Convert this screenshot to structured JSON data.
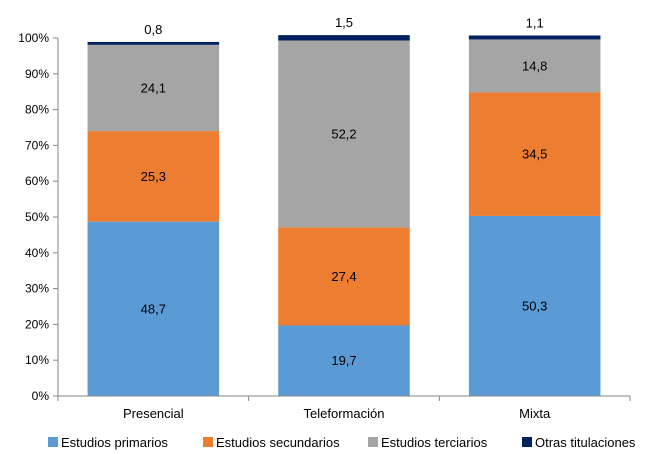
{
  "chart_data": {
    "type": "bar",
    "stacked": true,
    "categories": [
      "Presencial",
      "Teleformación",
      "Mixta"
    ],
    "series": [
      {
        "name": "Estudios primarios",
        "color": "#5b9bd5",
        "values": [
          48.7,
          19.7,
          50.3
        ]
      },
      {
        "name": "Estudios secundarios",
        "color": "#ed7d31",
        "values": [
          25.3,
          27.4,
          34.5
        ]
      },
      {
        "name": "Estudios terciarios",
        "color": "#a5a5a5",
        "values": [
          24.1,
          52.2,
          14.8
        ]
      },
      {
        "name": "Otras titulaciones",
        "color": "#002060",
        "values": [
          0.8,
          1.5,
          1.1
        ]
      }
    ],
    "data_labels": {
      "Presencial": [
        "48,7",
        "25,3",
        "24,1",
        "0,8"
      ],
      "Teleformación": [
        "19,7",
        "27,4",
        "52,2",
        "1,5"
      ],
      "Mixta": [
        "50,3",
        "34,5",
        "14,8",
        "1,1"
      ]
    },
    "y_ticks": [
      "0%",
      "10%",
      "20%",
      "30%",
      "40%",
      "50%",
      "60%",
      "70%",
      "80%",
      "90%",
      "100%"
    ],
    "ylim": [
      0,
      100
    ],
    "grid": false,
    "legend_position": "bottom"
  }
}
